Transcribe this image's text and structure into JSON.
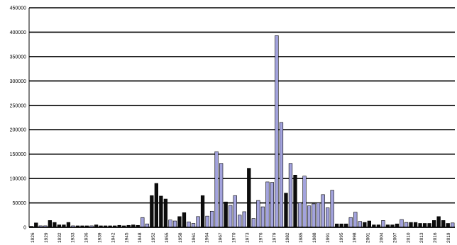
{
  "chart_data": {
    "type": "bar",
    "title": "",
    "xlabel": "",
    "ylabel": "",
    "ylim": [
      0,
      450000
    ],
    "yticks": [
      0,
      50000,
      100000,
      150000,
      200000,
      250000,
      300000,
      350000,
      400000,
      450000
    ],
    "ytick_labels": [
      "0",
      "50000",
      "100000",
      "150000",
      "200000",
      "250000",
      "300000",
      "350000",
      "400000",
      "450000"
    ],
    "grid": true,
    "legend": "none",
    "colors": {
      "dark": "#0d0d0d",
      "light": "#a3a3dd",
      "grid": "#000000"
    },
    "x_tick_labels": [
      "1926",
      "1929",
      "1932",
      "1933",
      "1936",
      "1939",
      "1942",
      "1945",
      "1948",
      "1952",
      "1955",
      "1958",
      "1961",
      "1964",
      "1967",
      "1970",
      "1973",
      "1976",
      "1979",
      "1982",
      "1985",
      "1988",
      "1991",
      "1995",
      "1998",
      "2001",
      "2004",
      "2007",
      "2010",
      "2013",
      "2016",
      "2019"
    ],
    "values": [
      2000,
      9000,
      3000,
      3000,
      14000,
      10000,
      5000,
      5000,
      10000,
      3000,
      3000,
      3000,
      3000,
      3000,
      5000,
      3000,
      3000,
      3000,
      3000,
      4000,
      3000,
      4000,
      5000,
      4000,
      20000,
      7000,
      65000,
      90000,
      64000,
      58000,
      15000,
      13000,
      22000,
      30000,
      11000,
      8000,
      22000,
      65000,
      23000,
      33000,
      155000,
      131000,
      52000,
      45000,
      65000,
      25000,
      32000,
      121000,
      18000,
      55000,
      42000,
      93000,
      92000,
      393000,
      215000,
      70000,
      131000,
      107000,
      50000,
      105000,
      44000,
      48000,
      50000,
      67000,
      40000,
      76000,
      7000,
      7000,
      7000,
      20000,
      31000,
      12000,
      10000,
      13000,
      5000,
      5000,
      14000,
      5000,
      5000,
      7000,
      16000,
      10000,
      10000,
      10000,
      8000,
      8000,
      8000,
      14000,
      22000,
      14000,
      8000,
      9000
    ],
    "bar_colors": [
      "dark",
      "dark",
      "light",
      "light",
      "dark",
      "dark",
      "dark",
      "dark",
      "dark",
      "light",
      "dark",
      "dark",
      "dark",
      "light",
      "dark",
      "dark",
      "dark",
      "dark",
      "dark",
      "dark",
      "dark",
      "dark",
      "dark",
      "dark",
      "light",
      "light",
      "dark",
      "dark",
      "dark",
      "dark",
      "light",
      "light",
      "dark",
      "dark",
      "light",
      "light",
      "light",
      "dark",
      "light",
      "light",
      "light",
      "light",
      "dark",
      "light",
      "light",
      "light",
      "light",
      "dark",
      "light",
      "light",
      "light",
      "light",
      "light",
      "light",
      "light",
      "dark",
      "light",
      "dark",
      "light",
      "light",
      "light",
      "light",
      "light",
      "light",
      "light",
      "light",
      "dark",
      "dark",
      "dark",
      "light",
      "light",
      "light",
      "dark",
      "dark",
      "dark",
      "dark",
      "light",
      "dark",
      "dark",
      "dark",
      "light",
      "light",
      "dark",
      "dark",
      "dark",
      "dark",
      "dark",
      "dark",
      "dark",
      "dark",
      "dark",
      "light"
    ]
  }
}
